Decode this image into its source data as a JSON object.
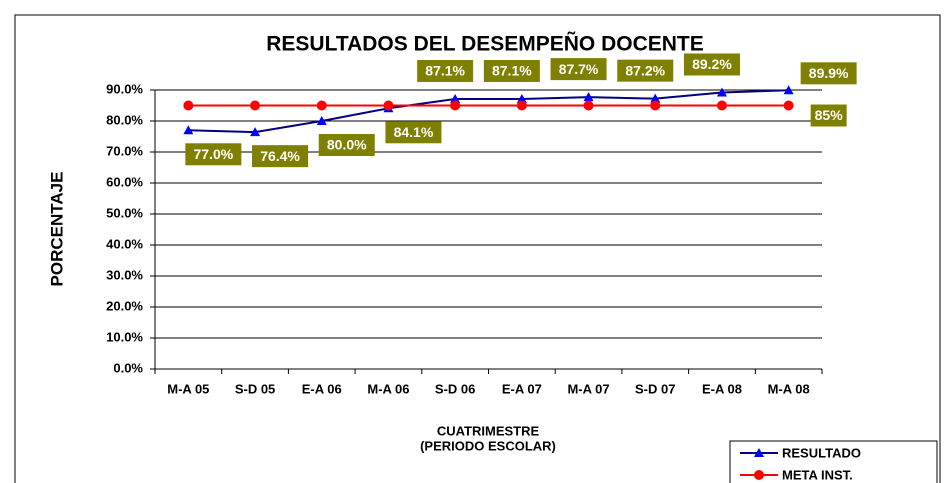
{
  "chart_data": {
    "type": "line",
    "title": "RESULTADOS DEL DESEMPEÑO DOCENTE",
    "ylabel": "PORCENTAJE",
    "xlabel": [
      "CUATRIMESTRE",
      "(PERIODO ESCOLAR)"
    ],
    "categories": [
      "M-A 05",
      "S-D 05",
      "E-A 06",
      "M-A 06",
      "S-D 06",
      "E-A 07",
      "M-A 07",
      "S-D 07",
      "E-A 08",
      "M-A 08"
    ],
    "series": [
      {
        "name": "RESULTADO",
        "color": "#000080",
        "marker_color": "#0000ff",
        "marker": "triangle",
        "values": [
          77.0,
          76.4,
          80.0,
          84.1,
          87.1,
          87.1,
          87.7,
          87.2,
          89.2,
          89.9
        ],
        "value_labels": [
          "77.0%",
          "76.4%",
          "80.0%",
          "84.1%",
          "87.1%",
          "87.1%",
          "87.7%",
          "87.2%",
          "89.2%",
          "89.9%"
        ]
      },
      {
        "name": "META INST.",
        "color": "#ff0000",
        "marker_color": "#ff0000",
        "marker": "circle",
        "values": [
          85,
          85,
          85,
          85,
          85,
          85,
          85,
          85,
          85,
          85
        ],
        "value_labels": [
          null,
          null,
          null,
          null,
          null,
          null,
          null,
          null,
          null,
          "85%"
        ]
      }
    ],
    "ylim": [
      0,
      90
    ],
    "yticks": [
      {
        "value": 0,
        "label": "0.0%"
      },
      {
        "value": 10,
        "label": "10.0%"
      },
      {
        "value": 20,
        "label": "20.0%"
      },
      {
        "value": 30,
        "label": "30.0%"
      },
      {
        "value": 40,
        "label": "40.0%"
      },
      {
        "value": 50,
        "label": "50.0%"
      },
      {
        "value": 60,
        "label": "60.0%"
      },
      {
        "value": 70,
        "label": "70.0%"
      },
      {
        "value": 80,
        "label": "80.0%"
      },
      {
        "value": 90,
        "label": "90.0%"
      }
    ],
    "grid": true,
    "label_color": "#808000",
    "legend": "lower right"
  }
}
